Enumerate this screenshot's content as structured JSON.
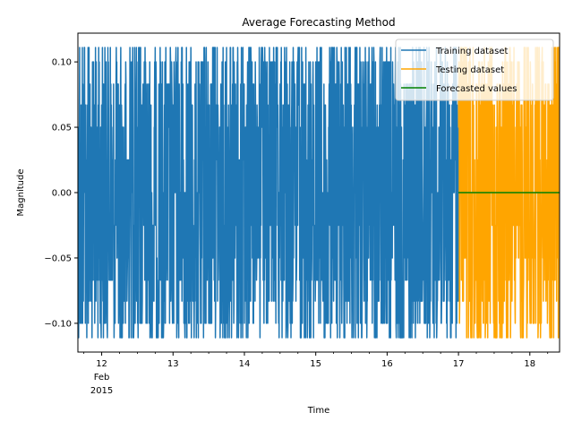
{
  "chart_data": {
    "type": "line",
    "title": "Average Forecasting Method",
    "xlabel": "Time",
    "ylabel": "Magnitude",
    "x_range": [
      "2015-02-11 16:00",
      "2015-02-18 10:00"
    ],
    "ylim": [
      -0.122,
      0.122
    ],
    "x_ticks": [
      {
        "date": "2015-02-12",
        "label": "12",
        "sublabel": [
          "Feb",
          "2015"
        ]
      },
      {
        "date": "2015-02-13",
        "label": "13"
      },
      {
        "date": "2015-02-14",
        "label": "14"
      },
      {
        "date": "2015-02-15",
        "label": "15"
      },
      {
        "date": "2015-02-16",
        "label": "16"
      },
      {
        "date": "2015-02-17",
        "label": "17"
      },
      {
        "date": "2015-02-18",
        "label": "18"
      }
    ],
    "y_ticks": [
      {
        "value": 0.1,
        "label": "0.10"
      },
      {
        "value": 0.05,
        "label": "0.05"
      },
      {
        "value": 0.0,
        "label": "0.00"
      },
      {
        "value": -0.05,
        "label": "−0.05"
      },
      {
        "value": -0.1,
        "label": "−0.10"
      }
    ],
    "grid": false,
    "legend_position": "top-right",
    "series": [
      {
        "name": "Training dataset",
        "color": "#1f77b4",
        "x_start": "2015-02-11 16:00",
        "x_end": "2015-02-17 00:00",
        "levels": [
          0.1,
          0.083,
          0.067,
          0.05,
          0.025,
          0.0,
          -0.025,
          -0.05,
          -0.067,
          -0.083,
          -0.1,
          0.111,
          -0.111
        ],
        "note_min": -0.111,
        "note_max": 0.111
      },
      {
        "name": "Testing dataset",
        "color": "#ffa500",
        "x_start": "2015-02-17 00:00",
        "x_end": "2015-02-18 10:00",
        "levels": [
          0.1,
          0.083,
          0.067,
          0.05,
          0.025,
          0.0,
          -0.025,
          -0.05,
          -0.067,
          -0.083,
          -0.1,
          0.111,
          -0.111
        ],
        "note_min": -0.111,
        "note_max": 0.111
      },
      {
        "name": "Forecasted values",
        "color": "#008000",
        "x_start": "2015-02-17 00:00",
        "x_end": "2015-02-18 10:00",
        "values": [
          0.0,
          0.0
        ]
      }
    ]
  }
}
